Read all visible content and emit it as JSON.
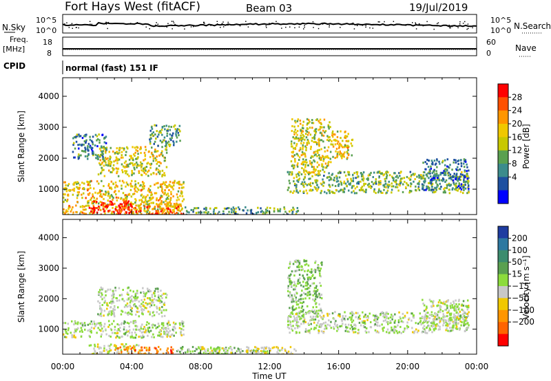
{
  "header": {
    "title": "Fort Hays West (fitACF)",
    "beam": "Beam 03",
    "date": "19/Jul/2019"
  },
  "strip_panels": {
    "nsky": {
      "left_label": "N.Sky",
      "right_label": "N.Search",
      "left_ticks": [
        "10^5",
        "10^0"
      ],
      "right_ticks": [
        "10^5",
        "10^0"
      ]
    },
    "freq": {
      "left_label_1": "Freq.",
      "left_label_2": "[MHz]",
      "left_ticks": [
        "18",
        "8"
      ],
      "right_label": "Nave",
      "right_ticks": [
        "60",
        "0"
      ]
    },
    "cpid": {
      "label": "CPID",
      "text": "normal (fast) 151 IF"
    }
  },
  "time_ticks": [
    "00:00",
    "04:00",
    "08:00",
    "12:00",
    "16:00",
    "20:00",
    "00:00"
  ],
  "x_axis_label": "Time UT",
  "power_colorbar": {
    "label": "Power [dB]",
    "ticks": [
      "28",
      "24",
      "20",
      "16",
      "12",
      "8",
      "4"
    ],
    "colors": [
      "#ff0000",
      "#ff5000",
      "#ff9600",
      "#f0c800",
      "#c8c800",
      "#5aa050",
      "#3c8c8c",
      "#1e50a0",
      "#0000ff"
    ]
  },
  "velocity_colorbar": {
    "label": "Velocity [m s⁻¹]",
    "ticks": [
      "200",
      "100",
      "50",
      "15",
      "−15",
      "−50",
      "−100",
      "−200"
    ],
    "colors": [
      "#1e3ca0",
      "#2d78a0",
      "#3c8c6e",
      "#5aa050",
      "#8cdc3c",
      "#c8c8c8",
      "#f0c800",
      "#ff9600",
      "#ff6400",
      "#ff0000"
    ]
  },
  "chart_data": [
    {
      "type": "heatmap",
      "title": "",
      "metric": "Power [dB]",
      "xlabel": "Time UT",
      "ylabel": "Slant Range [km]",
      "xlim_hours": [
        0,
        24
      ],
      "ylim_km": [
        180,
        4600
      ],
      "y_ticks": [
        1000,
        2000,
        3000,
        4000
      ],
      "colorbar_range": [
        0,
        30
      ],
      "regions": [
        {
          "t0": 0.0,
          "t1": 7.0,
          "r0": 200,
          "r1": 1300,
          "value": 18
        },
        {
          "t0": 1.5,
          "t1": 4.0,
          "r0": 250,
          "r1": 650,
          "value": 30
        },
        {
          "t0": 3.0,
          "t1": 7.0,
          "r0": 200,
          "r1": 500,
          "value": 24
        },
        {
          "t0": 2.0,
          "t1": 6.0,
          "r0": 1450,
          "r1": 2400,
          "value": 16
        },
        {
          "t0": 5.0,
          "t1": 6.8,
          "r0": 2400,
          "r1": 3100,
          "value": 10
        },
        {
          "t0": 0.5,
          "t1": 2.5,
          "r0": 2000,
          "r1": 2800,
          "value": 8
        },
        {
          "t0": 7.0,
          "t1": 14.0,
          "r0": 200,
          "r1": 450,
          "value": 10
        },
        {
          "t0": 13.0,
          "t1": 23.5,
          "r0": 900,
          "r1": 1600,
          "value": 12
        },
        {
          "t0": 13.2,
          "t1": 15.5,
          "r0": 1500,
          "r1": 3300,
          "value": 16
        },
        {
          "t0": 15.5,
          "t1": 16.8,
          "r0": 2000,
          "r1": 2900,
          "value": 18
        },
        {
          "t0": 20.8,
          "t1": 23.5,
          "r0": 1000,
          "r1": 2000,
          "value": 8
        }
      ]
    },
    {
      "type": "heatmap",
      "title": "",
      "metric": "Velocity [m s^-1]",
      "xlabel": "Time UT",
      "ylabel": "Slant Range [km]",
      "xlim_hours": [
        0,
        24
      ],
      "ylim_km": [
        180,
        4600
      ],
      "y_ticks": [
        1000,
        2000,
        3000,
        4000
      ],
      "colorbar_range": [
        -250,
        250
      ],
      "regions": [
        {
          "t0": 0.0,
          "t1": 7.0,
          "r0": 750,
          "r1": 1300,
          "value": 0
        },
        {
          "t0": 2.0,
          "t1": 6.0,
          "r0": 1450,
          "r1": 2400,
          "value": 0
        },
        {
          "t0": 1.5,
          "t1": 4.5,
          "r0": 200,
          "r1": 550,
          "value": -30
        },
        {
          "t0": 3.0,
          "t1": 6.5,
          "r0": 200,
          "r1": 450,
          "value": -150
        },
        {
          "t0": 6.5,
          "t1": 12.0,
          "r0": 200,
          "r1": 450,
          "value": 30
        },
        {
          "t0": 8.0,
          "t1": 13.5,
          "r0": 200,
          "r1": 450,
          "value": -40
        },
        {
          "t0": 13.0,
          "t1": 15.0,
          "r0": 1500,
          "r1": 3300,
          "value": 30
        },
        {
          "t0": 13.0,
          "t1": 23.5,
          "r0": 900,
          "r1": 1600,
          "value": 0
        },
        {
          "t0": 20.8,
          "t1": 23.5,
          "r0": 1000,
          "r1": 2000,
          "value": 0
        }
      ]
    }
  ]
}
